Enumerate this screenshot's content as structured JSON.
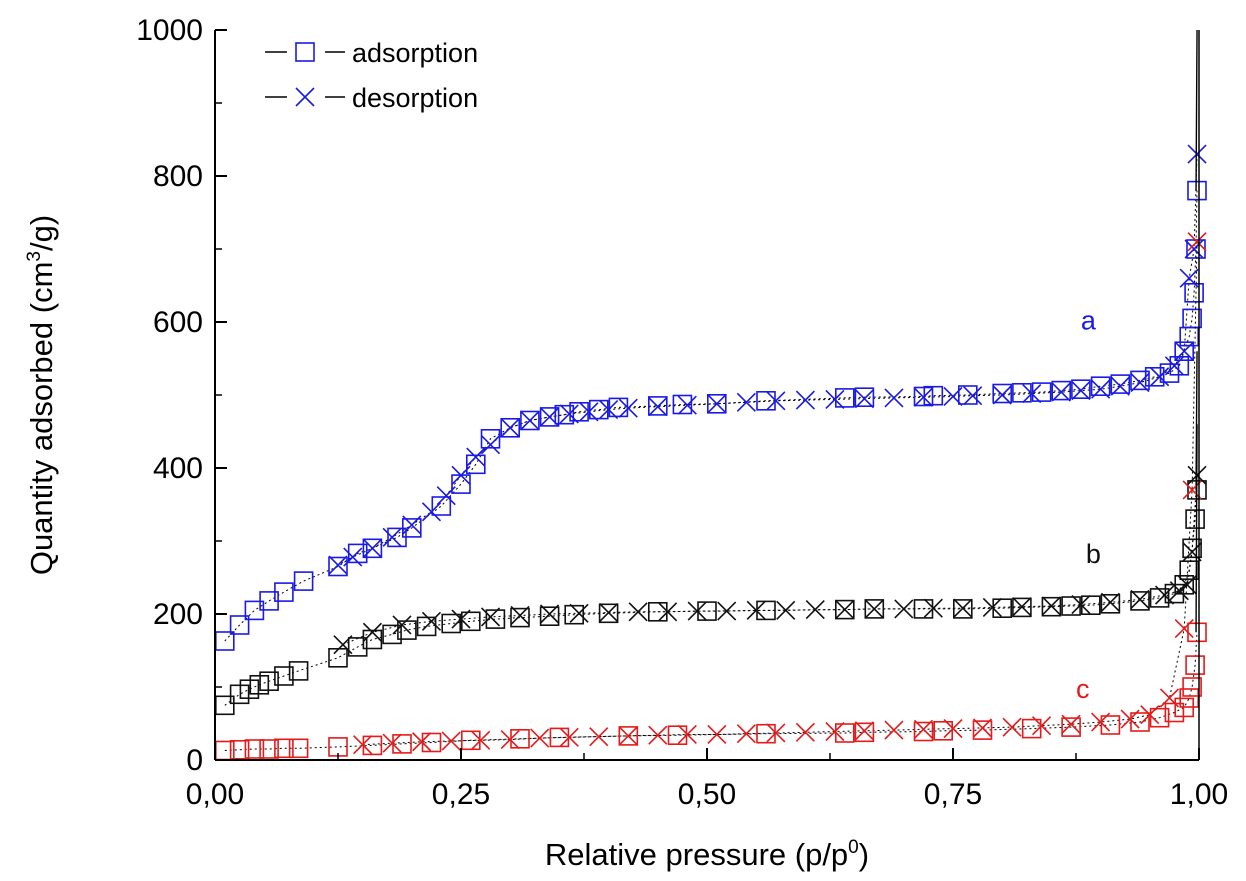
{
  "chart_data": {
    "type": "scatter",
    "xlabel": {
      "main": "Relative pressure (p/p",
      "sup": "0",
      "end": ")"
    },
    "ylabel": {
      "main": "Quantity adsorbed (cm",
      "sup": "3",
      "end": "/g)"
    },
    "xlim": [
      0,
      1
    ],
    "ylim": [
      0,
      1000
    ],
    "xticks": [
      0,
      0.25,
      0.5,
      0.75,
      1.0
    ],
    "xtick_labels": [
      "0,00",
      "0,25",
      "0,50",
      "0,75",
      "1,00"
    ],
    "yticks": [
      0,
      200,
      400,
      600,
      800,
      1000
    ],
    "ytick_labels": [
      "0",
      "200",
      "400",
      "600",
      "800",
      "1000"
    ],
    "grid": false,
    "legend": {
      "position": "top-left",
      "entries": [
        {
          "label": "adsorption",
          "marker": "square"
        },
        {
          "label": "desorption",
          "marker": "cross"
        }
      ]
    },
    "colors": {
      "a": "#1a1ae6",
      "b": "#111111",
      "c": "#e61a1a"
    },
    "series": [
      {
        "name": "a",
        "color": "#1a1ae6",
        "label_at": [
          0.88,
          590
        ],
        "adsorption": {
          "x": [
            0.01,
            0.025,
            0.04,
            0.055,
            0.07,
            0.09,
            0.125,
            0.145,
            0.16,
            0.185,
            0.2,
            0.23,
            0.25,
            0.265,
            0.28,
            0.3,
            0.32,
            0.34,
            0.355,
            0.37,
            0.39,
            0.41,
            0.45,
            0.475,
            0.51,
            0.56,
            0.64,
            0.66,
            0.72,
            0.73,
            0.765,
            0.8,
            0.82,
            0.84,
            0.86,
            0.88,
            0.9,
            0.92,
            0.94,
            0.955,
            0.97,
            0.98,
            0.985,
            0.99,
            0.993,
            0.995,
            0.997,
            0.998
          ],
          "y": [
            163,
            185,
            205,
            218,
            230,
            245,
            265,
            283,
            290,
            305,
            318,
            348,
            378,
            405,
            440,
            455,
            465,
            470,
            473,
            477,
            480,
            483,
            485,
            487,
            488,
            492,
            496,
            497,
            498,
            499,
            500,
            502,
            503,
            504,
            506,
            508,
            512,
            515,
            520,
            525,
            530,
            540,
            560,
            580,
            605,
            640,
            700,
            780
          ]
        },
        "desorption": {
          "x": [
            0.998,
            0.995,
            0.99,
            0.985,
            0.975,
            0.96,
            0.94,
            0.92,
            0.9,
            0.88,
            0.86,
            0.83,
            0.8,
            0.77,
            0.75,
            0.72,
            0.69,
            0.66,
            0.63,
            0.6,
            0.57,
            0.54,
            0.51,
            0.48,
            0.45,
            0.42,
            0.4,
            0.38,
            0.36,
            0.34,
            0.32,
            0.3,
            0.28,
            0.265,
            0.25,
            0.235,
            0.22,
            0.2,
            0.18,
            0.16,
            0.14,
            0.125
          ],
          "y": [
            830,
            700,
            660,
            560,
            540,
            525,
            517,
            512,
            508,
            506,
            504,
            502,
            500,
            499,
            498,
            497,
            496,
            495,
            494,
            493,
            492,
            490,
            488,
            486,
            484,
            482,
            480,
            477,
            474,
            470,
            465,
            455,
            432,
            415,
            390,
            362,
            340,
            322,
            305,
            290,
            278,
            267
          ]
        }
      },
      {
        "name": "b",
        "color": "#111111",
        "label_at": [
          0.885,
          270
        ],
        "adsorption": {
          "x": [
            0.01,
            0.025,
            0.035,
            0.045,
            0.055,
            0.07,
            0.085,
            0.125,
            0.145,
            0.16,
            0.18,
            0.195,
            0.215,
            0.24,
            0.26,
            0.285,
            0.31,
            0.34,
            0.365,
            0.4,
            0.45,
            0.5,
            0.56,
            0.64,
            0.67,
            0.72,
            0.76,
            0.8,
            0.82,
            0.85,
            0.87,
            0.89,
            0.91,
            0.94,
            0.96,
            0.975,
            0.985,
            0.99,
            0.993,
            0.996,
            0.998
          ],
          "y": [
            75,
            90,
            97,
            103,
            108,
            115,
            122,
            140,
            155,
            165,
            172,
            178,
            183,
            187,
            190,
            193,
            195,
            197,
            199,
            201,
            203,
            204,
            205,
            206,
            207,
            207,
            207,
            208,
            209,
            210,
            211,
            212,
            214,
            218,
            222,
            228,
            240,
            260,
            290,
            330,
            370
          ]
        },
        "desorption": {
          "x": [
            0.998,
            0.993,
            0.988,
            0.98,
            0.965,
            0.94,
            0.91,
            0.88,
            0.85,
            0.82,
            0.79,
            0.76,
            0.73,
            0.7,
            0.67,
            0.64,
            0.61,
            0.58,
            0.55,
            0.52,
            0.49,
            0.46,
            0.43,
            0.4,
            0.37,
            0.34,
            0.31,
            0.28,
            0.25,
            0.22,
            0.19,
            0.16,
            0.13
          ],
          "y": [
            390,
            285,
            240,
            232,
            226,
            220,
            216,
            213,
            211,
            210,
            209,
            208,
            208,
            207,
            207,
            206,
            206,
            205,
            205,
            204,
            204,
            203,
            203,
            202,
            201,
            200,
            198,
            196,
            193,
            190,
            185,
            175,
            158
          ]
        }
      },
      {
        "name": "c",
        "color": "#e61a1a",
        "label_at": [
          0.875,
          85
        ],
        "adsorption": {
          "x": [
            0.01,
            0.025,
            0.04,
            0.055,
            0.07,
            0.085,
            0.125,
            0.16,
            0.19,
            0.22,
            0.26,
            0.31,
            0.35,
            0.42,
            0.47,
            0.56,
            0.64,
            0.66,
            0.72,
            0.74,
            0.78,
            0.83,
            0.87,
            0.91,
            0.94,
            0.96,
            0.975,
            0.985,
            0.99,
            0.993,
            0.996,
            0.998
          ],
          "y": [
            13,
            14,
            15,
            15,
            16,
            16,
            18,
            20,
            22,
            24,
            27,
            29,
            31,
            33,
            34,
            36,
            37,
            38,
            39,
            40,
            41,
            43,
            45,
            48,
            52,
            58,
            65,
            72,
            85,
            100,
            130,
            175
          ]
        },
        "desorption": {
          "x": [
            0.998,
            0.993,
            0.985,
            0.97,
            0.95,
            0.93,
            0.9,
            0.87,
            0.84,
            0.81,
            0.78,
            0.75,
            0.72,
            0.69,
            0.66,
            0.63,
            0.6,
            0.57,
            0.54,
            0.51,
            0.48,
            0.45,
            0.42,
            0.39,
            0.36,
            0.33,
            0.3,
            0.27,
            0.24,
            0.21,
            0.18,
            0.15
          ],
          "y": [
            710,
            370,
            180,
            85,
            62,
            56,
            52,
            49,
            47,
            45,
            44,
            43,
            42,
            41,
            40,
            39,
            38,
            37,
            36,
            35,
            35,
            34,
            33,
            32,
            31,
            30,
            28,
            27,
            26,
            25,
            23,
            21
          ]
        }
      }
    ]
  }
}
